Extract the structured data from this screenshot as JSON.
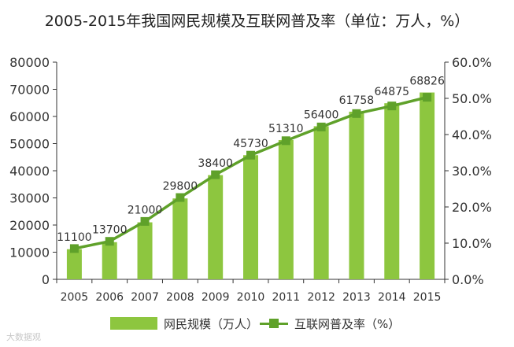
{
  "chart_data": {
    "type": "bar+line",
    "title": "2005-2015年我国网民规模及互联网普及率（单位：万人，%）",
    "categories": [
      "2005",
      "2006",
      "2007",
      "2008",
      "2009",
      "2010",
      "2011",
      "2012",
      "2013",
      "2014",
      "2015"
    ],
    "series": [
      {
        "name": "网民规模（万人）",
        "type": "bar",
        "axis": "left",
        "color": "#8dc63f",
        "values": [
          11100,
          13700,
          21000,
          29800,
          38400,
          45730,
          51310,
          56400,
          61758,
          64875,
          68826
        ],
        "labels": [
          "11100",
          "13700",
          "21000",
          "29800",
          "38400",
          "45730",
          "51310",
          "56400",
          "61758",
          "64875",
          "68826"
        ]
      },
      {
        "name": "互联网普及率（%）",
        "type": "line",
        "axis": "right",
        "color": "#5fa12a",
        "values": [
          8.5,
          10.5,
          16.0,
          22.6,
          28.9,
          34.3,
          38.3,
          42.1,
          45.8,
          47.9,
          50.3
        ]
      }
    ],
    "y_left": {
      "min": 0,
      "max": 80000,
      "ticks": [
        "0",
        "10000",
        "20000",
        "30000",
        "40000",
        "50000",
        "60000",
        "70000",
        "80000"
      ]
    },
    "y_right": {
      "min": 0,
      "max": 60,
      "ticks": [
        "0.0%",
        "10.0%",
        "20.0%",
        "30.0%",
        "40.0%",
        "50.0%",
        "60.0%"
      ]
    },
    "legend_position": "bottom"
  },
  "legend": {
    "bars_label": "网民规模（万人）",
    "line_label": "互联网普及率（%）"
  },
  "watermark": "大数据观"
}
